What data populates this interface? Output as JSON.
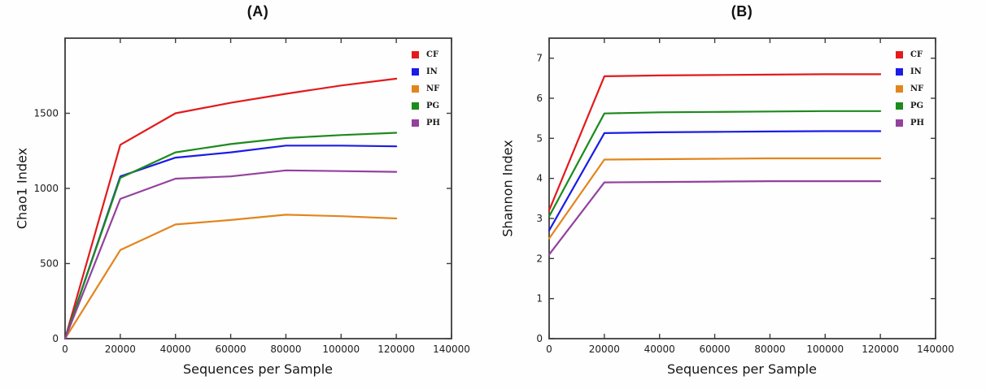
{
  "figure": {
    "background": "#fefefe",
    "frame_color": "#3c3c3c"
  },
  "chart_data": [
    {
      "type": "line",
      "panel": "A",
      "title": "(A)",
      "xlabel": "Sequences per Sample",
      "ylabel": "Chao1 Index",
      "x": [
        0,
        20000,
        40000,
        60000,
        80000,
        100000,
        120000
      ],
      "xlim": [
        0,
        140000
      ],
      "ylim": [
        0,
        2000
      ],
      "xticks": [
        0,
        20000,
        40000,
        60000,
        80000,
        100000,
        120000,
        140000
      ],
      "yticks": [
        0,
        500,
        1000,
        1500
      ],
      "grid": false,
      "legend_position": "upper-right",
      "series": [
        {
          "name": "CF",
          "color": "#e31a1c",
          "values": [
            0,
            1290,
            1500,
            1570,
            1630,
            1685,
            1730
          ]
        },
        {
          "name": "IN",
          "color": "#1c1ce6",
          "values": [
            0,
            1080,
            1205,
            1240,
            1285,
            1285,
            1280
          ]
        },
        {
          "name": "NF",
          "color": "#e2851e",
          "values": [
            0,
            590,
            760,
            790,
            825,
            815,
            800
          ]
        },
        {
          "name": "PG",
          "color": "#1d8a1d",
          "values": [
            0,
            1070,
            1240,
            1295,
            1335,
            1355,
            1370
          ]
        },
        {
          "name": "PH",
          "color": "#93419d",
          "values": [
            0,
            930,
            1065,
            1080,
            1120,
            1115,
            1110
          ]
        }
      ]
    },
    {
      "type": "line",
      "panel": "B",
      "title": "(B)",
      "xlabel": "Sequences per Sample",
      "ylabel": "Shannon Index",
      "x": [
        0,
        20000,
        40000,
        60000,
        80000,
        100000,
        120000
      ],
      "xlim": [
        0,
        140000
      ],
      "ylim": [
        0,
        7.5
      ],
      "xticks": [
        0,
        20000,
        40000,
        60000,
        80000,
        100000,
        120000,
        140000
      ],
      "yticks": [
        0,
        1,
        2,
        3,
        4,
        5,
        6,
        7
      ],
      "grid": false,
      "legend_position": "upper-right",
      "series": [
        {
          "name": "CF",
          "color": "#e31a1c",
          "values": [
            3.2,
            6.55,
            6.57,
            6.58,
            6.59,
            6.6,
            6.6
          ]
        },
        {
          "name": "IN",
          "color": "#1c1ce6",
          "values": [
            2.7,
            5.13,
            5.15,
            5.16,
            5.17,
            5.18,
            5.18
          ]
        },
        {
          "name": "NF",
          "color": "#e2851e",
          "values": [
            2.5,
            4.47,
            4.48,
            4.49,
            4.5,
            4.5,
            4.5
          ]
        },
        {
          "name": "PG",
          "color": "#1d8a1d",
          "values": [
            3.05,
            5.62,
            5.65,
            5.66,
            5.67,
            5.68,
            5.68
          ]
        },
        {
          "name": "PH",
          "color": "#93419d",
          "values": [
            2.1,
            3.9,
            3.91,
            3.92,
            3.93,
            3.93,
            3.93
          ]
        }
      ]
    }
  ]
}
